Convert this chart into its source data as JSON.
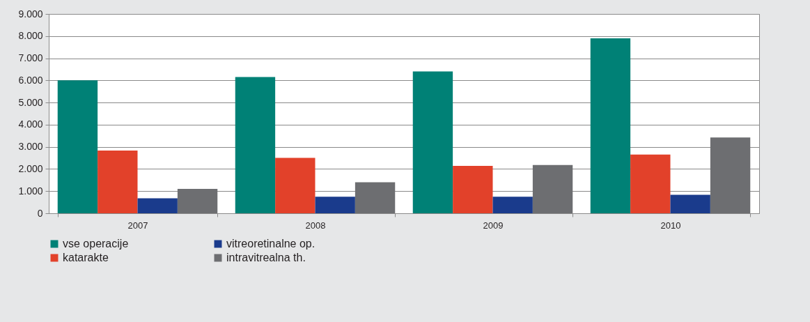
{
  "chart_data": {
    "type": "bar",
    "categories": [
      "2007",
      "2008",
      "2009",
      "2010"
    ],
    "series": [
      {
        "name": "vse operacije",
        "color": "#008176",
        "values": [
          6000,
          6150,
          6400,
          7900
        ]
      },
      {
        "name": "katarakte",
        "color": "#e2412a",
        "values": [
          2830,
          2500,
          2140,
          2650
        ]
      },
      {
        "name": "vitreoretinalne op.",
        "color": "#1a3b8c",
        "values": [
          680,
          750,
          750,
          830
        ]
      },
      {
        "name": "intravitrealna th.",
        "color": "#6d6e71",
        "values": [
          1100,
          1400,
          2180,
          3420
        ]
      }
    ],
    "ylim": [
      0,
      9000
    ],
    "yticks": [
      0,
      {
        "value": 1000,
        "label": "1.000"
      },
      {
        "value": 2000,
        "label": "2.000"
      },
      {
        "value": 3000,
        "label": "3.000"
      },
      {
        "value": 4000,
        "label": "4.000"
      },
      {
        "value": 5000,
        "label": "5.000"
      },
      {
        "value": 6000,
        "label": "6.000"
      },
      {
        "value": 7000,
        "label": "7.000"
      },
      {
        "value": 8000,
        "label": "8.000"
      },
      {
        "value": 9000,
        "label": "9.000"
      }
    ],
    "grid": "y",
    "legend": "bottom left"
  }
}
